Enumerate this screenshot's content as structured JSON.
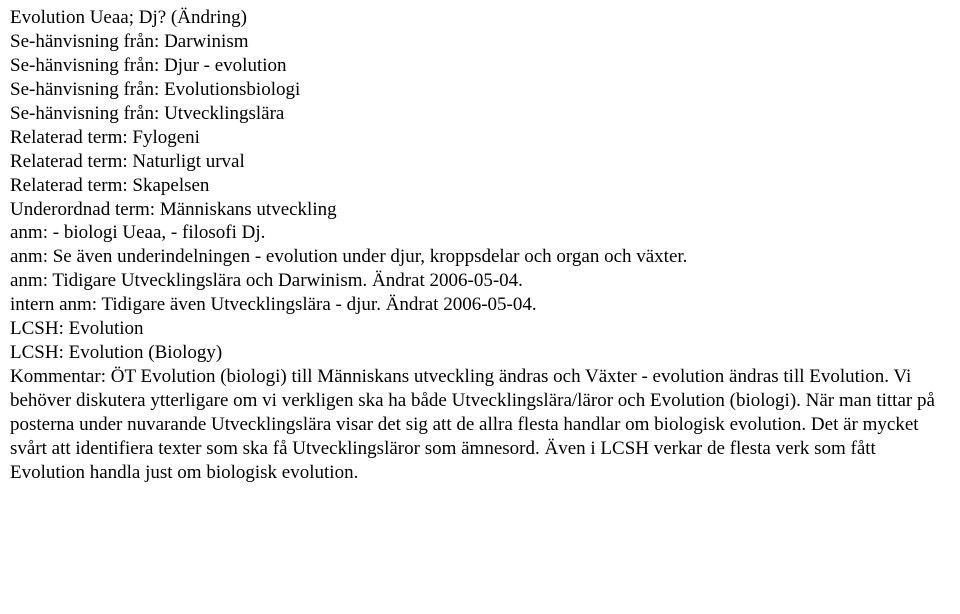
{
  "lines": [
    "Evolution Ueaa; Dj? (Ändring)",
    "Se-hänvisning från: Darwinism",
    "Se-hänvisning från: Djur - evolution",
    "Se-hänvisning från: Evolutionsbiologi",
    "Se-hänvisning från: Utvecklingslära",
    "Relaterad term: Fylogeni",
    "Relaterad term: Naturligt urval",
    "Relaterad term: Skapelsen",
    "Underordnad term: Människans utveckling",
    "anm: - biologi Ueaa, - filosofi Dj.",
    "anm: Se även underindelningen - evolution under djur, kroppsdelar och organ och växter.",
    "anm: Tidigare Utvecklingslära och Darwinism. Ändrat 2006-05-04.",
    "intern anm: Tidigare även Utvecklingslära - djur. Ändrat 2006-05-04.",
    "LCSH: Evolution",
    "LCSH: Evolution (Biology)",
    "Kommentar: ÖT Evolution (biologi) till Människans utveckling ändras och Växter - evolution ändras till Evolution. Vi behöver diskutera ytterligare om vi verkligen ska ha både Utvecklingslära/läror och Evolution (biologi). När man tittar på posterna under nuvarande Utvecklingslära visar det sig att de allra flesta handlar om biologisk evolution. Det är mycket svårt att identifiera texter som ska få Utvecklingsläror som ämnesord. Även i LCSH verkar de flesta verk som fått Evolution handla just om biologisk evolution."
  ]
}
